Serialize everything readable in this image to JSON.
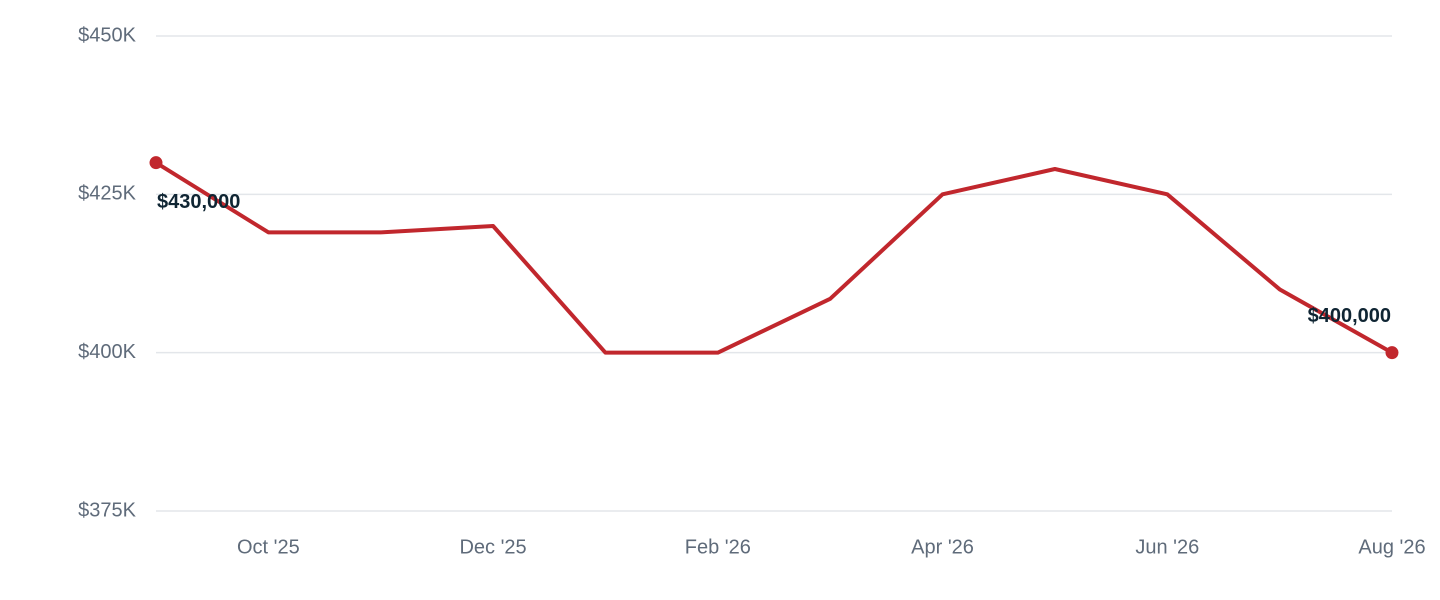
{
  "chart_data": {
    "type": "line",
    "categories": [
      null,
      "Oct '25",
      null,
      "Dec '25",
      null,
      "Feb '26",
      null,
      "Apr '26",
      null,
      "Jun '26",
      null,
      "Aug '26"
    ],
    "values": [
      430000,
      419000,
      419000,
      420000,
      400000,
      400000,
      408500,
      425000,
      429000,
      425000,
      410000,
      400000
    ],
    "value_labels": [
      "$430,000",
      null,
      null,
      null,
      null,
      null,
      null,
      null,
      null,
      null,
      null,
      "$400,000"
    ],
    "color": "#c1272d",
    "ylim": [
      375000,
      450000
    ],
    "yticks": [
      {
        "value": 375000,
        "label": "$375K"
      },
      {
        "value": 400000,
        "label": "$400K"
      },
      {
        "value": 425000,
        "label": "$425K"
      },
      {
        "value": 450000,
        "label": "$450K"
      }
    ],
    "grid": true
  }
}
